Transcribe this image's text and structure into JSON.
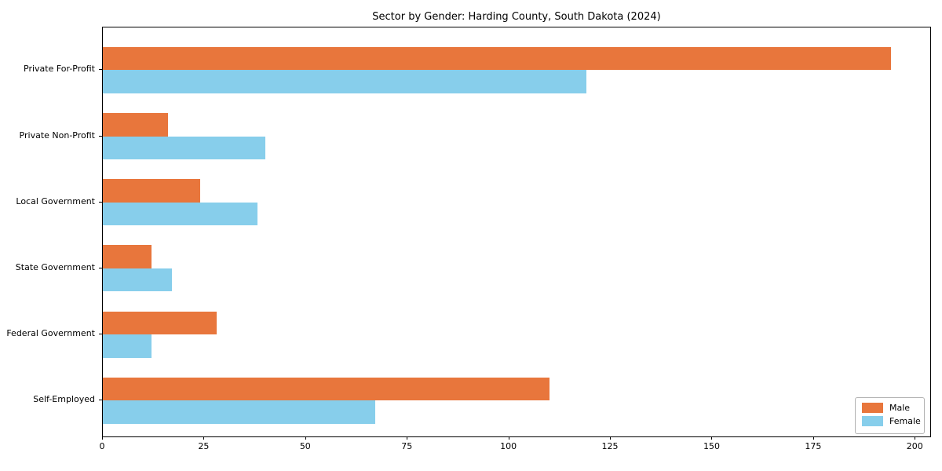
{
  "chart_data": {
    "type": "bar",
    "orientation": "horizontal",
    "title": "Sector by Gender: Harding County, South Dakota (2024)",
    "xlabel": "",
    "ylabel": "",
    "categories": [
      "Private For-Profit",
      "Private Non-Profit",
      "Local Government",
      "State Government",
      "Federal Government",
      "Self-Employed"
    ],
    "series": [
      {
        "name": "Male",
        "color": "#e8763c",
        "values": [
          194,
          16,
          24,
          12,
          28,
          110
        ]
      },
      {
        "name": "Female",
        "color": "#87ceeb",
        "values": [
          119,
          40,
          38,
          17,
          12,
          67
        ]
      }
    ],
    "xlim": [
      0,
      204
    ],
    "xticks": [
      0,
      25,
      50,
      75,
      100,
      125,
      150,
      175,
      200
    ],
    "grid": false,
    "background_color": "#ffffff",
    "axis_color": "#000000",
    "legend": {
      "position": "lower right",
      "entries": [
        "Male",
        "Female"
      ]
    }
  }
}
